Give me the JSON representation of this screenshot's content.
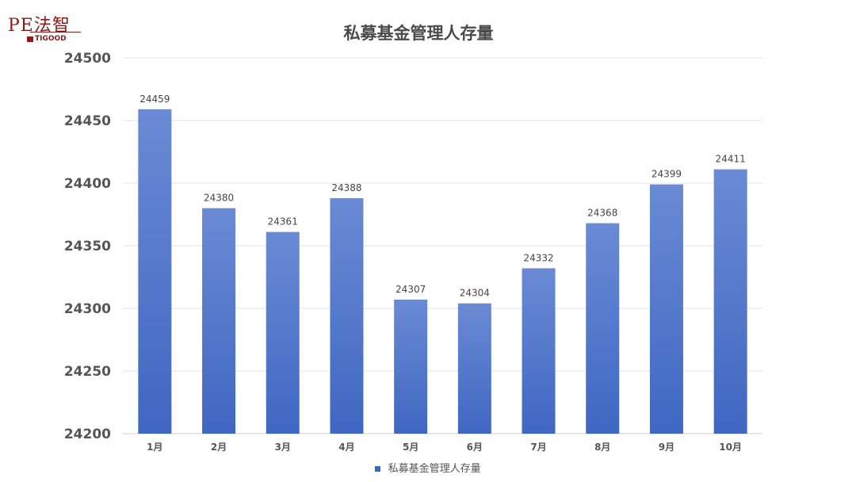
{
  "logo": {
    "main": "PE法智",
    "sub": "TIGOOD"
  },
  "colors": {
    "bar": "#3f67c2",
    "bar_light": "#6a8ad4",
    "grid": "#e3e3e3",
    "axis_text": "#555555"
  },
  "chart_data": {
    "type": "bar",
    "title": "私募基金管理人存量",
    "categories": [
      "1月",
      "2月",
      "3月",
      "4月",
      "5月",
      "6月",
      "7月",
      "8月",
      "9月",
      "10月"
    ],
    "series": [
      {
        "name": "私募基金管理人存量",
        "values": [
          24459,
          24380,
          24361,
          24388,
          24307,
          24304,
          24332,
          24368,
          24399,
          24411
        ]
      }
    ],
    "ylim": [
      24200,
      24500
    ],
    "yticks": [
      24200,
      24250,
      24300,
      24350,
      24400,
      24450,
      24500
    ],
    "grid": true,
    "data_labels": true,
    "legend": "bottom"
  }
}
